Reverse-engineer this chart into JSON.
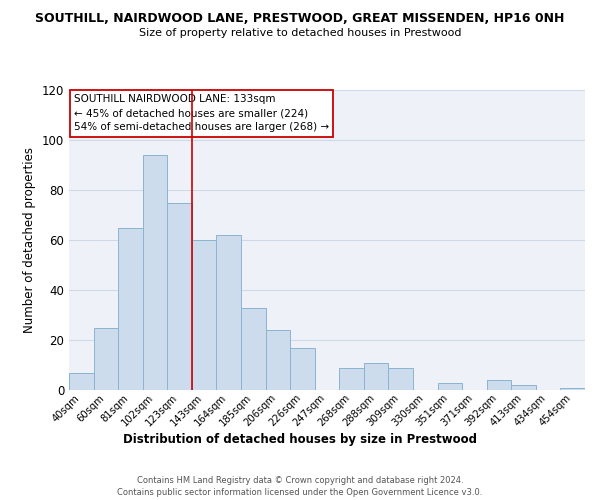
{
  "title": "SOUTHILL, NAIRDWOOD LANE, PRESTWOOD, GREAT MISSENDEN, HP16 0NH",
  "subtitle": "Size of property relative to detached houses in Prestwood",
  "xlabel": "Distribution of detached houses by size in Prestwood",
  "ylabel": "Number of detached properties",
  "bar_color": "#ccdcec",
  "bar_edgecolor": "#8ab4d0",
  "categories": [
    "40sqm",
    "60sqm",
    "81sqm",
    "102sqm",
    "123sqm",
    "143sqm",
    "164sqm",
    "185sqm",
    "206sqm",
    "226sqm",
    "247sqm",
    "268sqm",
    "288sqm",
    "309sqm",
    "330sqm",
    "351sqm",
    "371sqm",
    "392sqm",
    "413sqm",
    "434sqm",
    "454sqm"
  ],
  "values": [
    7,
    25,
    65,
    94,
    75,
    60,
    62,
    33,
    24,
    17,
    0,
    9,
    11,
    9,
    0,
    3,
    0,
    4,
    2,
    0,
    1
  ],
  "ylim": [
    0,
    120
  ],
  "yticks": [
    0,
    20,
    40,
    60,
    80,
    100,
    120
  ],
  "vline_color": "#cc0000",
  "annotation_title": "SOUTHILL NAIRDWOOD LANE: 133sqm",
  "annotation_line1": "← 45% of detached houses are smaller (224)",
  "annotation_line2": "54% of semi-detached houses are larger (268) →",
  "annotation_box_edgecolor": "#cc0000",
  "footer1": "Contains HM Land Registry data © Crown copyright and database right 2024.",
  "footer2": "Contains public sector information licensed under the Open Government Licence v3.0.",
  "background_color": "#eef2f8"
}
